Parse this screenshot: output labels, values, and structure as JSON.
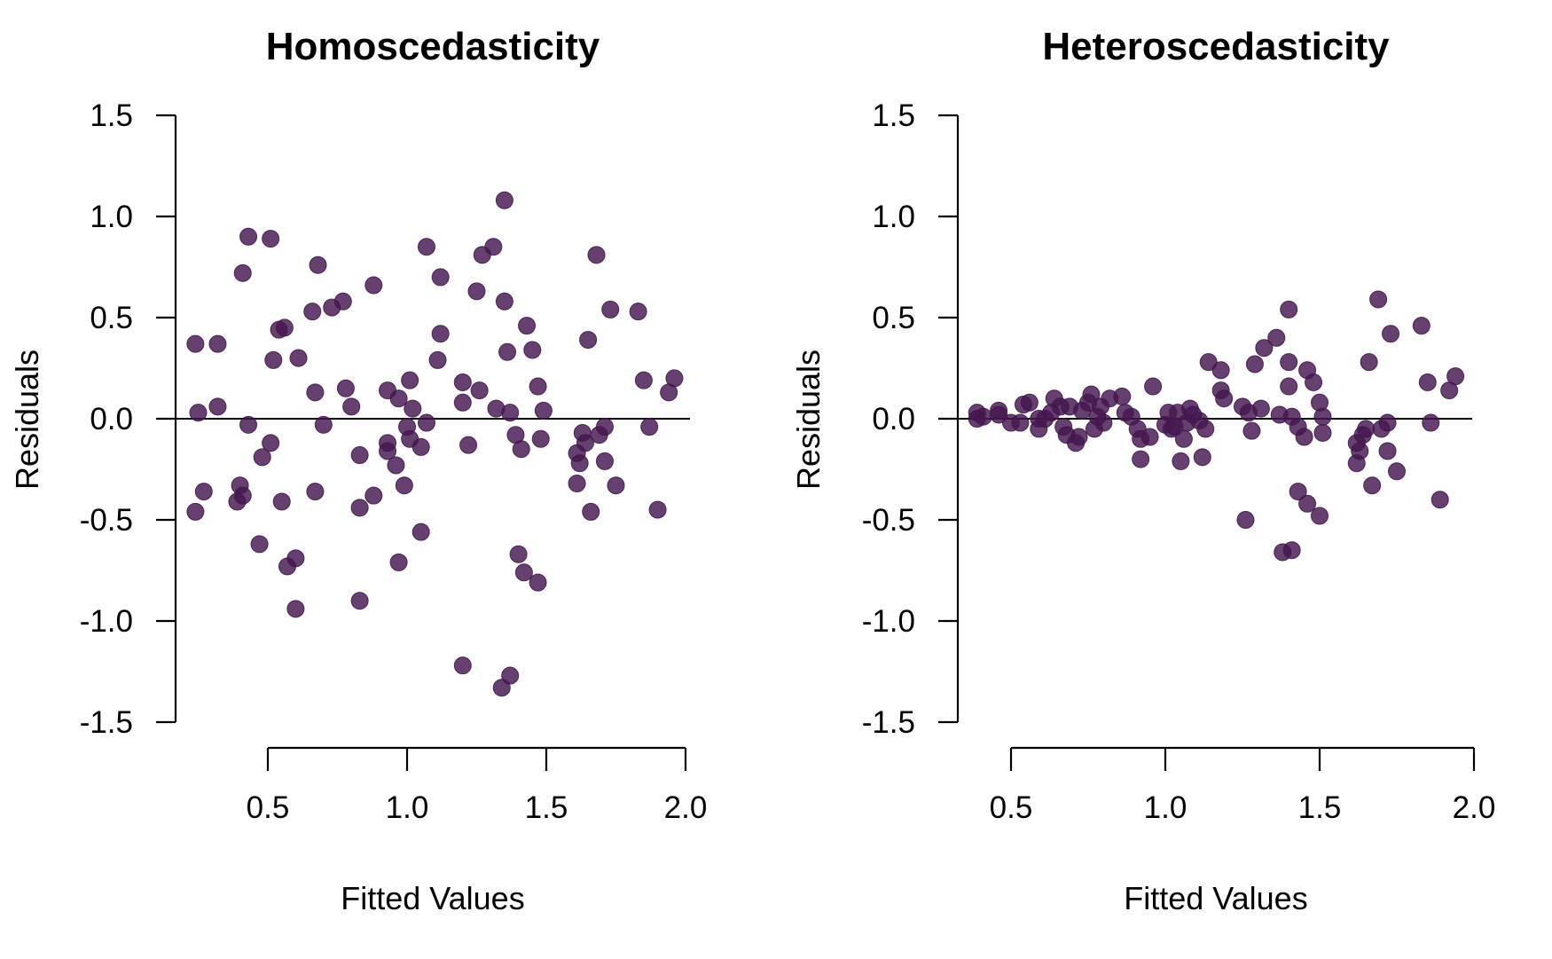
{
  "chart_data": [
    {
      "type": "scatter",
      "title": "Homoscedasticity",
      "xlabel": "Fitted Values",
      "ylabel": "Residuals",
      "xlim": [
        0.2,
        2.0
      ],
      "ylim": [
        -1.5,
        1.5
      ],
      "x_ticks": [
        "0.5",
        "1.0",
        "1.5",
        "2.0"
      ],
      "y_ticks": [
        "1.5",
        "1.0",
        "0.5",
        "0.0",
        "-0.5",
        "-1.0",
        "-1.5"
      ],
      "reference_line_y": 0,
      "point_color": "#44174f",
      "grid": false,
      "points": [
        [
          0.24,
          0.37
        ],
        [
          0.25,
          0.03
        ],
        [
          0.24,
          -0.46
        ],
        [
          0.27,
          -0.36
        ],
        [
          0.39,
          -0.41
        ],
        [
          0.32,
          0.37
        ],
        [
          0.32,
          0.06
        ],
        [
          0.4,
          -0.33
        ],
        [
          0.41,
          -0.38
        ],
        [
          0.43,
          0.9
        ],
        [
          0.41,
          0.72
        ],
        [
          0.43,
          -0.03
        ],
        [
          0.51,
          0.89
        ],
        [
          0.52,
          0.29
        ],
        [
          0.54,
          0.44
        ],
        [
          0.56,
          0.45
        ],
        [
          0.47,
          -0.62
        ],
        [
          0.48,
          -0.19
        ],
        [
          0.51,
          -0.12
        ],
        [
          0.55,
          -0.41
        ],
        [
          0.57,
          -0.73
        ],
        [
          0.6,
          -0.69
        ],
        [
          0.6,
          -0.94
        ],
        [
          0.61,
          0.3
        ],
        [
          0.66,
          0.53
        ],
        [
          0.67,
          0.13
        ],
        [
          0.67,
          -0.36
        ],
        [
          0.68,
          0.76
        ],
        [
          0.7,
          -0.03
        ],
        [
          0.73,
          0.55
        ],
        [
          0.77,
          0.58
        ],
        [
          0.78,
          0.15
        ],
        [
          0.8,
          0.06
        ],
        [
          0.83,
          -0.18
        ],
        [
          0.83,
          -0.44
        ],
        [
          0.83,
          -0.9
        ],
        [
          0.88,
          0.66
        ],
        [
          0.88,
          -0.38
        ],
        [
          0.93,
          0.14
        ],
        [
          0.93,
          -0.12
        ],
        [
          0.93,
          -0.16
        ],
        [
          0.96,
          -0.23
        ],
        [
          0.97,
          0.1
        ],
        [
          0.97,
          -0.71
        ],
        [
          0.99,
          -0.33
        ],
        [
          1.0,
          -0.04
        ],
        [
          1.01,
          0.19
        ],
        [
          1.01,
          -0.1
        ],
        [
          1.02,
          0.05
        ],
        [
          1.05,
          -0.14
        ],
        [
          1.05,
          -0.56
        ],
        [
          1.07,
          -0.02
        ],
        [
          1.07,
          0.85
        ],
        [
          1.11,
          0.29
        ],
        [
          1.12,
          0.42
        ],
        [
          1.12,
          0.7
        ],
        [
          1.2,
          0.18
        ],
        [
          1.2,
          0.08
        ],
        [
          1.2,
          -1.22
        ],
        [
          1.22,
          -0.13
        ],
        [
          1.25,
          0.63
        ],
        [
          1.27,
          0.81
        ],
        [
          1.26,
          0.14
        ],
        [
          1.31,
          0.85
        ],
        [
          1.32,
          0.05
        ],
        [
          1.34,
          -1.33
        ],
        [
          1.35,
          0.58
        ],
        [
          1.35,
          1.08
        ],
        [
          1.36,
          0.33
        ],
        [
          1.37,
          0.03
        ],
        [
          1.37,
          -1.27
        ],
        [
          1.39,
          -0.08
        ],
        [
          1.4,
          -0.67
        ],
        [
          1.41,
          -0.15
        ],
        [
          1.42,
          -0.76
        ],
        [
          1.43,
          0.46
        ],
        [
          1.45,
          0.34
        ],
        [
          1.47,
          0.16
        ],
        [
          1.47,
          -0.81
        ],
        [
          1.48,
          -0.1
        ],
        [
          1.49,
          0.04
        ],
        [
          1.61,
          -0.17
        ],
        [
          1.61,
          -0.32
        ],
        [
          1.62,
          -0.22
        ],
        [
          1.63,
          -0.07
        ],
        [
          1.64,
          -0.12
        ],
        [
          1.65,
          0.39
        ],
        [
          1.66,
          -0.46
        ],
        [
          1.68,
          0.81
        ],
        [
          1.69,
          -0.08
        ],
        [
          1.71,
          -0.04
        ],
        [
          1.71,
          -0.21
        ],
        [
          1.73,
          0.54
        ],
        [
          1.75,
          -0.33
        ],
        [
          1.83,
          0.53
        ],
        [
          1.85,
          0.19
        ],
        [
          1.87,
          -0.04
        ],
        [
          1.9,
          -0.45
        ],
        [
          1.94,
          0.13
        ],
        [
          1.96,
          0.2
        ]
      ]
    },
    {
      "type": "scatter",
      "title": "Heteroscedasticity",
      "xlabel": "Fitted Values",
      "ylabel": "Residuals",
      "xlim": [
        0.35,
        2.0
      ],
      "ylim": [
        -1.5,
        1.5
      ],
      "x_ticks": [
        "0.5",
        "1.0",
        "1.5",
        "2.0"
      ],
      "y_ticks": [
        "1.5",
        "1.0",
        "0.5",
        "0.0",
        "-0.5",
        "-1.0",
        "-1.5"
      ],
      "reference_line_y": 0,
      "point_color": "#44174f",
      "grid": false,
      "points": [
        [
          0.39,
          0.03
        ],
        [
          0.39,
          0.0
        ],
        [
          0.41,
          0.01
        ],
        [
          0.46,
          0.02
        ],
        [
          0.46,
          0.04
        ],
        [
          0.5,
          -0.02
        ],
        [
          0.53,
          -0.02
        ],
        [
          0.54,
          0.07
        ],
        [
          0.56,
          0.08
        ],
        [
          0.59,
          0.0
        ],
        [
          0.59,
          -0.05
        ],
        [
          0.61,
          0.0
        ],
        [
          0.63,
          0.03
        ],
        [
          0.64,
          0.1
        ],
        [
          0.66,
          0.06
        ],
        [
          0.67,
          -0.04
        ],
        [
          0.68,
          -0.08
        ],
        [
          0.69,
          0.06
        ],
        [
          0.71,
          -0.12
        ],
        [
          0.72,
          -0.09
        ],
        [
          0.73,
          0.04
        ],
        [
          0.75,
          0.08
        ],
        [
          0.76,
          0.12
        ],
        [
          0.77,
          -0.05
        ],
        [
          0.78,
          0.01
        ],
        [
          0.79,
          0.06
        ],
        [
          0.8,
          -0.02
        ],
        [
          0.82,
          0.1
        ],
        [
          0.86,
          0.11
        ],
        [
          0.87,
          0.03
        ],
        [
          0.89,
          0.01
        ],
        [
          0.91,
          -0.05
        ],
        [
          0.92,
          -0.1
        ],
        [
          0.92,
          -0.2
        ],
        [
          0.95,
          -0.09
        ],
        [
          0.96,
          0.16
        ],
        [
          1.0,
          -0.03
        ],
        [
          1.01,
          0.03
        ],
        [
          1.02,
          -0.05
        ],
        [
          1.03,
          -0.04
        ],
        [
          1.04,
          0.03
        ],
        [
          1.05,
          -0.21
        ],
        [
          1.06,
          -0.1
        ],
        [
          1.07,
          -0.02
        ],
        [
          1.08,
          0.05
        ],
        [
          1.09,
          0.02
        ],
        [
          1.11,
          -0.01
        ],
        [
          1.12,
          -0.19
        ],
        [
          1.13,
          -0.05
        ],
        [
          1.14,
          0.28
        ],
        [
          1.18,
          0.24
        ],
        [
          1.18,
          0.14
        ],
        [
          1.19,
          0.1
        ],
        [
          1.25,
          0.06
        ],
        [
          1.26,
          -0.5
        ],
        [
          1.27,
          0.03
        ],
        [
          1.28,
          -0.06
        ],
        [
          1.29,
          0.27
        ],
        [
          1.31,
          0.05
        ],
        [
          1.32,
          0.35
        ],
        [
          1.36,
          0.4
        ],
        [
          1.37,
          0.02
        ],
        [
          1.38,
          -0.66
        ],
        [
          1.4,
          0.54
        ],
        [
          1.4,
          0.28
        ],
        [
          1.4,
          0.16
        ],
        [
          1.41,
          -0.65
        ],
        [
          1.41,
          0.01
        ],
        [
          1.43,
          -0.04
        ],
        [
          1.43,
          -0.36
        ],
        [
          1.45,
          -0.09
        ],
        [
          1.46,
          -0.42
        ],
        [
          1.46,
          0.24
        ],
        [
          1.48,
          0.18
        ],
        [
          1.5,
          0.08
        ],
        [
          1.5,
          -0.48
        ],
        [
          1.51,
          0.01
        ],
        [
          1.51,
          -0.07
        ],
        [
          1.62,
          -0.12
        ],
        [
          1.62,
          -0.22
        ],
        [
          1.63,
          -0.16
        ],
        [
          1.64,
          -0.08
        ],
        [
          1.65,
          -0.05
        ],
        [
          1.66,
          0.28
        ],
        [
          1.67,
          -0.33
        ],
        [
          1.69,
          0.59
        ],
        [
          1.7,
          -0.05
        ],
        [
          1.72,
          -0.16
        ],
        [
          1.72,
          -0.02
        ],
        [
          1.73,
          0.42
        ],
        [
          1.75,
          -0.26
        ],
        [
          1.83,
          0.46
        ],
        [
          1.85,
          0.18
        ],
        [
          1.86,
          -0.02
        ],
        [
          1.89,
          -0.4
        ],
        [
          1.92,
          0.14
        ],
        [
          1.94,
          0.21
        ]
      ]
    }
  ]
}
